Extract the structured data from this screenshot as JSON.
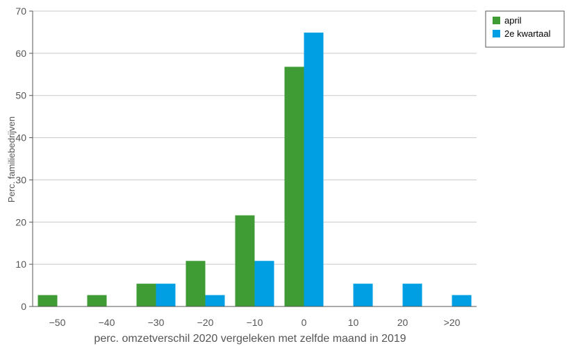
{
  "chart_data": {
    "type": "bar",
    "categories": [
      "−50",
      "−40",
      "−30",
      "−20",
      "−10",
      "0",
      "10",
      "20",
      ">20"
    ],
    "series": [
      {
        "name": "april",
        "color": "#3f9c35",
        "values": [
          2.7,
          2.7,
          5.4,
          10.8,
          21.6,
          56.8,
          0,
          0,
          0
        ]
      },
      {
        "name": "2e kwartaal",
        "color": "#009fe3",
        "values": [
          0,
          0,
          5.4,
          2.7,
          10.8,
          64.9,
          5.4,
          5.4,
          2.7
        ]
      }
    ],
    "xlabel": "perc. omzetverschil 2020 vergeleken met zelfde maand in 2019",
    "ylabel": "Perc. familiebedrijven",
    "ylim": [
      0,
      70
    ],
    "yticks": [
      0,
      10,
      20,
      30,
      40,
      50,
      60,
      70
    ],
    "grid": true,
    "legend_position": "right"
  }
}
